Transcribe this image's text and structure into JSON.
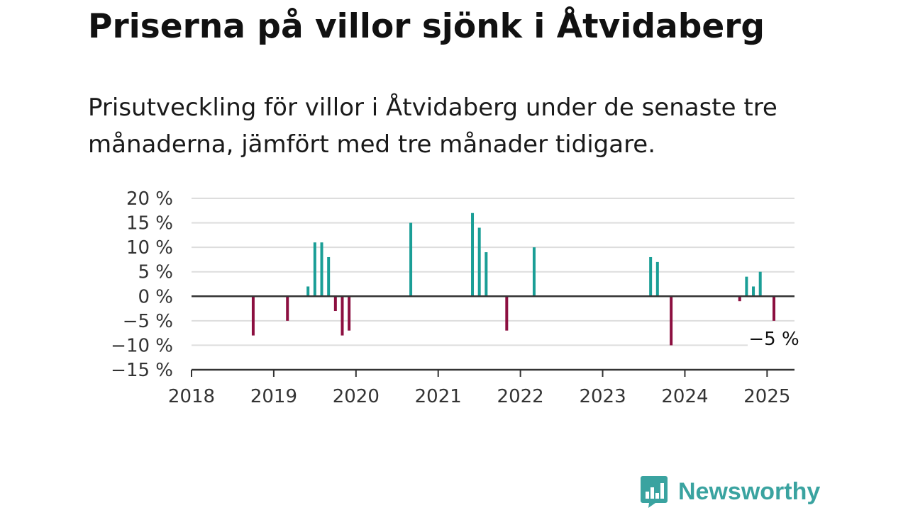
{
  "title": "Priserna på villor sjönk i Åtvidaberg",
  "subtitle": "Prisutveckling för villor i Åtvidaberg under de senaste tre månaderna, jämfört med tre månader tidigare.",
  "brand": {
    "name": "Newsworthy",
    "color": "#3aa3a0",
    "icon": "bar-chart-speech-bubble-icon"
  },
  "colors": {
    "positive": "#1a9e96",
    "negative": "#8c0f40",
    "grid": "#dddddd",
    "axis": "#333333"
  },
  "chart_data": {
    "type": "bar",
    "title": "",
    "xlabel": "",
    "ylabel": "",
    "ylim": [
      -15,
      20
    ],
    "xlim": [
      "2018-01",
      "2025-05"
    ],
    "y_ticks": [
      20,
      15,
      10,
      5,
      0,
      -5,
      -10,
      -15
    ],
    "y_tick_labels": [
      "20 %",
      "15 %",
      "10 %",
      "5 %",
      "0 %",
      "−5 %",
      "−10 %",
      "−15 %"
    ],
    "x_tick_labels": [
      "2018",
      "2019",
      "2020",
      "2021",
      "2022",
      "2023",
      "2024",
      "2025"
    ],
    "grid": true,
    "legend": "none",
    "series": [
      {
        "points": [
          {
            "date": "2018-10",
            "value": -8
          },
          {
            "date": "2019-03",
            "value": -5
          },
          {
            "date": "2019-06",
            "value": 2
          },
          {
            "date": "2019-07",
            "value": 11
          },
          {
            "date": "2019-08",
            "value": 11
          },
          {
            "date": "2019-09",
            "value": 8
          },
          {
            "date": "2019-10",
            "value": -3
          },
          {
            "date": "2019-11",
            "value": -8
          },
          {
            "date": "2019-12",
            "value": -7
          },
          {
            "date": "2020-09",
            "value": 15
          },
          {
            "date": "2021-06",
            "value": 17
          },
          {
            "date": "2021-07",
            "value": 14
          },
          {
            "date": "2021-08",
            "value": 9
          },
          {
            "date": "2021-11",
            "value": -7
          },
          {
            "date": "2022-03",
            "value": 10
          },
          {
            "date": "2023-08",
            "value": 8
          },
          {
            "date": "2023-09",
            "value": 7
          },
          {
            "date": "2023-11",
            "value": -10
          },
          {
            "date": "2024-09",
            "value": -1
          },
          {
            "date": "2024-10",
            "value": 4
          },
          {
            "date": "2024-11",
            "value": 2
          },
          {
            "date": "2024-12",
            "value": 5
          },
          {
            "date": "2025-02",
            "value": -5
          }
        ]
      }
    ],
    "annotations": [
      {
        "date": "2025-02",
        "text": "−5 %"
      }
    ]
  }
}
